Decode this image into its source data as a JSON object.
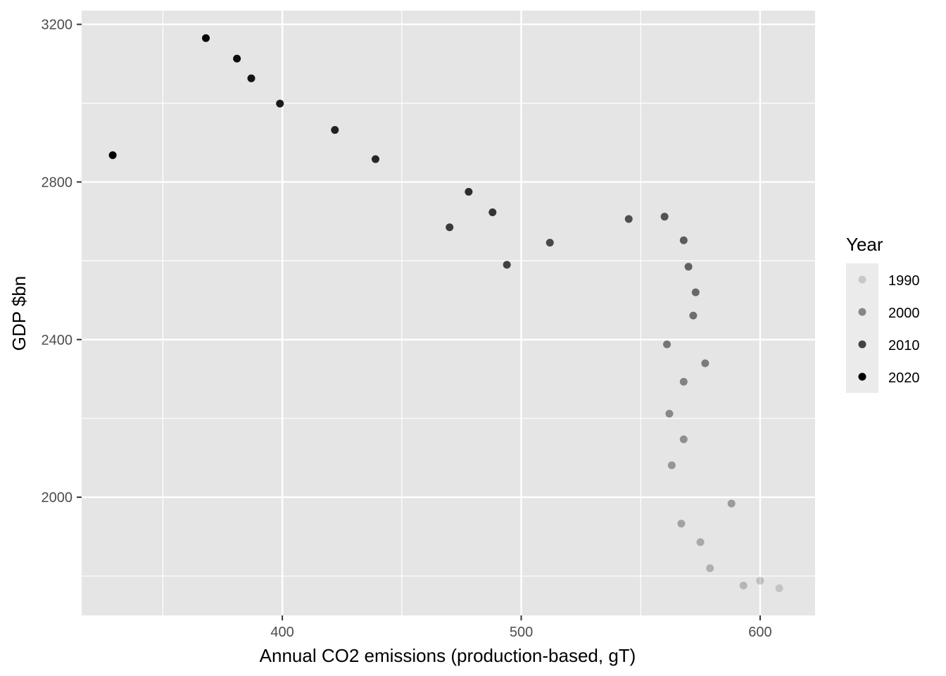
{
  "chart_data": {
    "type": "scatter",
    "xlabel": "Annual CO2 emissions (production-based, gT)",
    "ylabel": "GDP $bn",
    "xlim": [
      316,
      623
    ],
    "ylim": [
      1700,
      3235
    ],
    "x_ticks": [
      400,
      500,
      600
    ],
    "y_ticks": [
      2000,
      2400,
      2800,
      3200
    ],
    "grid": true,
    "panel_background": "#e5e5e5",
    "grid_color": "#ffffff",
    "point_color": "#000000",
    "legend": {
      "title": "Year",
      "placement": "right",
      "entries": [
        {
          "label": "1990",
          "alpha": 0.15
        },
        {
          "label": "2000",
          "alpha": 0.43
        },
        {
          "label": "2010",
          "alpha": 0.72
        },
        {
          "label": "2020",
          "alpha": 1.0
        }
      ]
    },
    "alpha_range": {
      "year_min": 1990,
      "year_max": 2020,
      "alpha_min": 0.15,
      "alpha_max": 1.0
    },
    "points": [
      {
        "year": 1990,
        "x": 608,
        "y": 1769
      },
      {
        "year": 1991,
        "x": 600,
        "y": 1788
      },
      {
        "year": 1992,
        "x": 593,
        "y": 1776
      },
      {
        "year": 1993,
        "x": 579,
        "y": 1820
      },
      {
        "year": 1994,
        "x": 575,
        "y": 1886
      },
      {
        "year": 1995,
        "x": 567,
        "y": 1933
      },
      {
        "year": 1996,
        "x": 588,
        "y": 1984
      },
      {
        "year": 1997,
        "x": 563,
        "y": 2081
      },
      {
        "year": 1998,
        "x": 568,
        "y": 2147
      },
      {
        "year": 1999,
        "x": 562,
        "y": 2212
      },
      {
        "year": 2000,
        "x": 568,
        "y": 2293
      },
      {
        "year": 2001,
        "x": 577,
        "y": 2340
      },
      {
        "year": 2002,
        "x": 561,
        "y": 2388
      },
      {
        "year": 2003,
        "x": 572,
        "y": 2461
      },
      {
        "year": 2004,
        "x": 573,
        "y": 2520
      },
      {
        "year": 2005,
        "x": 570,
        "y": 2585
      },
      {
        "year": 2006,
        "x": 568,
        "y": 2652
      },
      {
        "year": 2007,
        "x": 560,
        "y": 2712
      },
      {
        "year": 2008,
        "x": 545,
        "y": 2706
      },
      {
        "year": 2009,
        "x": 512,
        "y": 2646
      },
      {
        "year": 2010,
        "x": 494,
        "y": 2590
      },
      {
        "year": 2011,
        "x": 470,
        "y": 2685
      },
      {
        "year": 2012,
        "x": 488,
        "y": 2723
      },
      {
        "year": 2013,
        "x": 478,
        "y": 2775
      },
      {
        "year": 2014,
        "x": 439,
        "y": 2858
      },
      {
        "year": 2015,
        "x": 422,
        "y": 2932
      },
      {
        "year": 2016,
        "x": 399,
        "y": 2999
      },
      {
        "year": 2017,
        "x": 387,
        "y": 3063
      },
      {
        "year": 2018,
        "x": 381,
        "y": 3113
      },
      {
        "year": 2019,
        "x": 368,
        "y": 3165
      },
      {
        "year": 2020,
        "x": 329,
        "y": 2868
      }
    ]
  }
}
